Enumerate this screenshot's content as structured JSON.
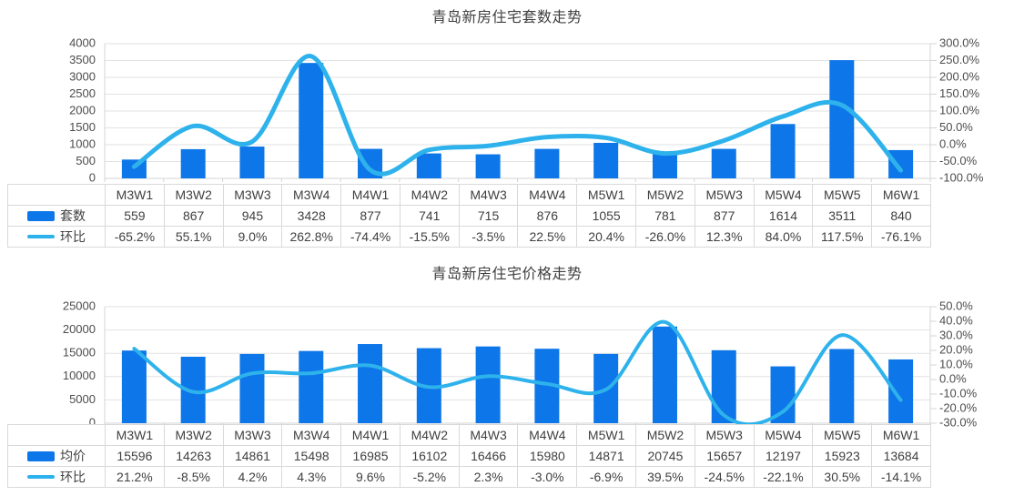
{
  "page": {
    "background": "#ffffff"
  },
  "colors": {
    "bar": "#0d76e8",
    "line": "#2eb2ec",
    "grid": "#e2e2e2",
    "plot_border": "#d4d4d4",
    "axis_text": "#4d4d4d",
    "title_text": "#404040",
    "table_border": "#d9d9d9",
    "table_text": "#404040"
  },
  "chart_data": [
    {
      "type": "bar+line",
      "title": "青岛新房住宅套数走势",
      "grid": true,
      "legend_position": "table-left",
      "categories": [
        "M3W1",
        "M3W2",
        "M3W3",
        "M3W4",
        "M4W1",
        "M4W2",
        "M4W3",
        "M4W4",
        "M5W1",
        "M5W2",
        "M5W3",
        "M5W4",
        "M5W5",
        "M6W1"
      ],
      "series": [
        {
          "name": "套数",
          "type": "bar",
          "axis": "left",
          "values": [
            559,
            867,
            945,
            3428,
            877,
            741,
            715,
            876,
            1055,
            781,
            877,
            1614,
            3511,
            840
          ]
        },
        {
          "name": "环比",
          "type": "line",
          "axis": "right",
          "values": [
            "-65.2%",
            "55.1%",
            "9.0%",
            "262.8%",
            "-74.4%",
            "-15.5%",
            "-3.5%",
            "22.5%",
            "20.4%",
            "-26.0%",
            "12.3%",
            "84.0%",
            "117.5%",
            "-76.1%"
          ]
        }
      ],
      "left_axis": {
        "ticks": [
          "4000",
          "3500",
          "3000",
          "2500",
          "2000",
          "1500",
          "1000",
          "500",
          "0"
        ],
        "min": 0,
        "max": 4000
      },
      "right_axis": {
        "ticks": [
          "300.0%",
          "250.0%",
          "200.0%",
          "150.0%",
          "100.0%",
          "50.0%",
          "0.0%",
          "-50.0%",
          "-100.0%"
        ],
        "min": -100,
        "max": 300
      }
    },
    {
      "type": "bar+line",
      "title": "青岛新房住宅价格走势",
      "grid": true,
      "legend_position": "table-left",
      "categories": [
        "M3W1",
        "M3W2",
        "M3W3",
        "M3W4",
        "M4W1",
        "M4W2",
        "M4W3",
        "M4W4",
        "M5W1",
        "M5W2",
        "M5W3",
        "M5W4",
        "M5W5",
        "M6W1"
      ],
      "series": [
        {
          "name": "均价",
          "type": "bar",
          "axis": "left",
          "values": [
            15596,
            14263,
            14861,
            15498,
            16985,
            16102,
            16466,
            15980,
            14871,
            20745,
            15657,
            12197,
            15923,
            13684
          ]
        },
        {
          "name": "环比",
          "type": "line",
          "axis": "right",
          "values": [
            "21.2%",
            "-8.5%",
            "4.2%",
            "4.3%",
            "9.6%",
            "-5.2%",
            "2.3%",
            "-3.0%",
            "-6.9%",
            "39.5%",
            "-24.5%",
            "-22.1%",
            "30.5%",
            "-14.1%"
          ]
        }
      ],
      "left_axis": {
        "ticks": [
          "25000",
          "20000",
          "15000",
          "10000",
          "5000",
          "0"
        ],
        "min": 0,
        "max": 25000
      },
      "right_axis": {
        "ticks": [
          "50.0%",
          "40.0%",
          "30.0%",
          "20.0%",
          "10.0%",
          "0.0%",
          "-10.0%",
          "-20.0%",
          "-30.0%"
        ],
        "min": -30,
        "max": 50
      }
    }
  ]
}
